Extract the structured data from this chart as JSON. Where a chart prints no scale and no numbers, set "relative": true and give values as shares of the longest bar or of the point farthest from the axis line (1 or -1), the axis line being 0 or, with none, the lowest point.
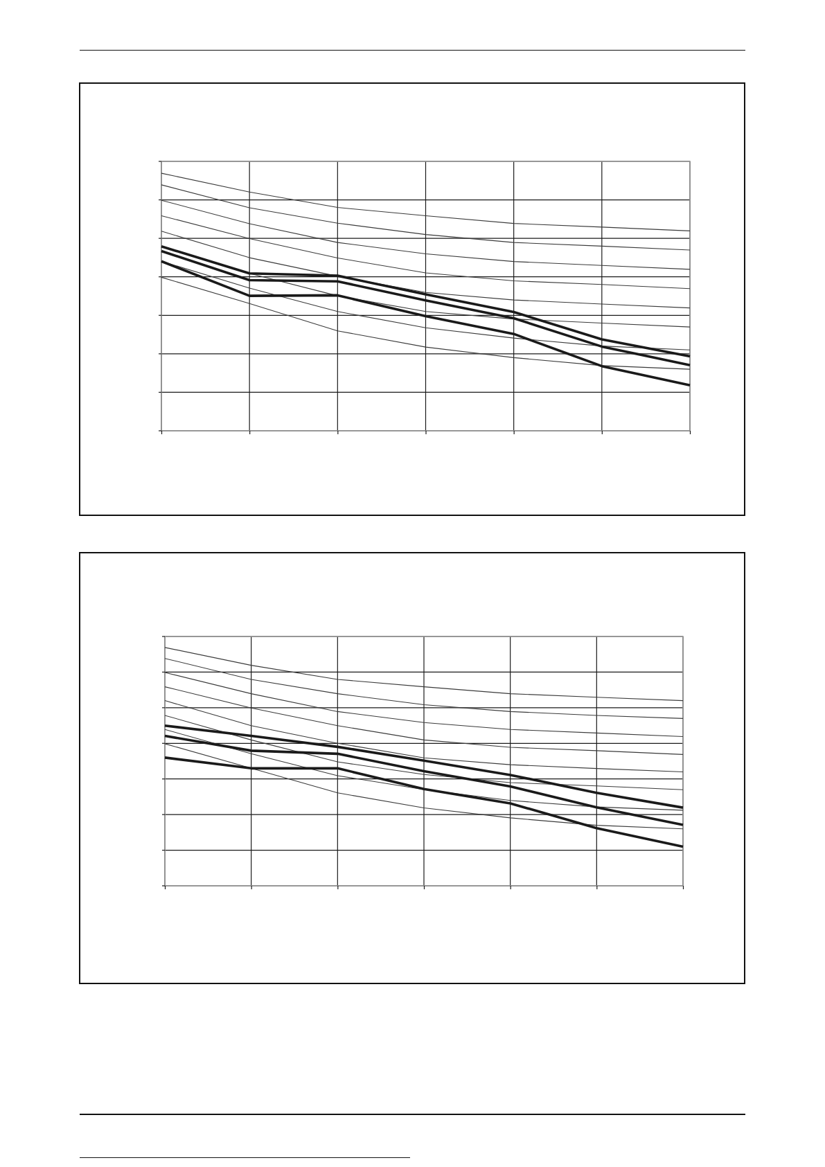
{
  "chart_data": [
    {
      "type": "line",
      "relative": true,
      "grid": true,
      "categories": [
        null,
        null,
        null,
        null,
        null,
        null,
        null
      ],
      "series": [
        {
          "color": "#3a3a3a",
          "values": [
            1.0,
            0.927,
            0.867,
            0.835,
            0.805,
            0.791,
            0.776
          ]
        },
        {
          "color": "#3a3a3a",
          "values": [
            0.955,
            0.866,
            0.806,
            0.762,
            0.731,
            0.717,
            0.702
          ]
        },
        {
          "color": "#3a3a3a",
          "values": [
            0.895,
            0.804,
            0.731,
            0.687,
            0.657,
            0.642,
            0.627
          ]
        },
        {
          "color": "#3a3a3a",
          "values": [
            0.835,
            0.746,
            0.671,
            0.613,
            0.582,
            0.568,
            0.552
          ]
        },
        {
          "color": "#3a3a3a",
          "values": [
            0.775,
            0.672,
            0.6,
            0.537,
            0.508,
            0.492,
            0.477
          ]
        },
        {
          "color": "#3a3a3a",
          "values": [
            0.715,
            0.611,
            0.524,
            0.463,
            0.434,
            0.418,
            0.403
          ]
        },
        {
          "color": "#3a3a3a",
          "values": [
            0.658,
            0.554,
            0.463,
            0.4,
            0.36,
            0.329,
            0.314
          ]
        },
        {
          "color": "#3a3a3a",
          "values": [
            0.596,
            0.494,
            0.388,
            0.325,
            0.284,
            0.253,
            0.239
          ]
        },
        {
          "color": "#1a1a1a",
          "values": [
            0.716,
            0.611,
            0.602,
            0.53,
            0.461,
            0.355,
            0.289
          ]
        },
        {
          "color": "#1a1a1a",
          "values": [
            0.698,
            0.585,
            0.58,
            0.506,
            0.437,
            0.327,
            0.255
          ]
        },
        {
          "color": "#1a1a1a",
          "values": [
            0.658,
            0.524,
            0.526,
            0.445,
            0.376,
            0.251,
            0.177
          ]
        }
      ]
    },
    {
      "type": "line",
      "relative": true,
      "grid": true,
      "categories": [
        null,
        null,
        null,
        null,
        null,
        null,
        null
      ],
      "series": [
        {
          "color": "#3a3a3a",
          "values": [
            1.0,
            0.925,
            0.866,
            0.835,
            0.806,
            0.791,
            0.777
          ]
        },
        {
          "color": "#3a3a3a",
          "values": [
            0.954,
            0.866,
            0.806,
            0.76,
            0.731,
            0.715,
            0.702
          ]
        },
        {
          "color": "#3a3a3a",
          "values": [
            0.895,
            0.806,
            0.731,
            0.685,
            0.656,
            0.641,
            0.626
          ]
        },
        {
          "color": "#3a3a3a",
          "values": [
            0.835,
            0.746,
            0.672,
            0.612,
            0.581,
            0.567,
            0.551
          ]
        },
        {
          "color": "#3a3a3a",
          "values": [
            0.777,
            0.672,
            0.598,
            0.537,
            0.508,
            0.492,
            0.478
          ]
        },
        {
          "color": "#3a3a3a",
          "values": [
            0.715,
            0.612,
            0.52,
            0.467,
            0.433,
            0.419,
            0.403
          ]
        },
        {
          "color": "#3a3a3a",
          "values": [
            0.656,
            0.554,
            0.462,
            0.404,
            0.358,
            0.331,
            0.317
          ]
        },
        {
          "color": "#3a3a3a",
          "values": [
            0.596,
            0.493,
            0.39,
            0.327,
            0.285,
            0.254,
            0.239
          ]
        },
        {
          "color": "#1a1a1a",
          "values": [
            0.672,
            0.629,
            0.583,
            0.525,
            0.465,
            0.39,
            0.328
          ]
        },
        {
          "color": "#1a1a1a",
          "values": [
            0.629,
            0.567,
            0.554,
            0.481,
            0.417,
            0.329,
            0.256
          ]
        },
        {
          "color": "#1a1a1a",
          "values": [
            0.538,
            0.493,
            0.493,
            0.406,
            0.346,
            0.242,
            0.164
          ]
        }
      ]
    }
  ]
}
